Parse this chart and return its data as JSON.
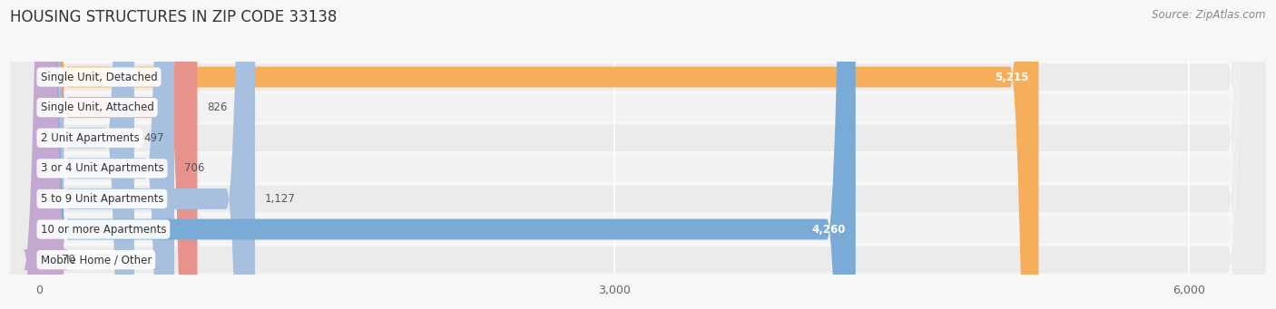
{
  "title": "HOUSING STRUCTURES IN ZIP CODE 33138",
  "source": "Source: ZipAtlas.com",
  "categories": [
    "Single Unit, Detached",
    "Single Unit, Attached",
    "2 Unit Apartments",
    "3 or 4 Unit Apartments",
    "5 to 9 Unit Apartments",
    "10 or more Apartments",
    "Mobile Home / Other"
  ],
  "values": [
    5215,
    826,
    497,
    706,
    1127,
    4260,
    70
  ],
  "bar_colors": [
    "#F7AE5A",
    "#E8928C",
    "#A8C0DF",
    "#A8C0DF",
    "#A8C0DF",
    "#7AABD6",
    "#C3A8D1"
  ],
  "value_labels": [
    "5,215",
    "826",
    "497",
    "706",
    "1,127",
    "4,260",
    "70"
  ],
  "value_inside": [
    true,
    false,
    false,
    false,
    false,
    true,
    false
  ],
  "xlim_min": -150,
  "xlim_max": 6400,
  "xticks": [
    0,
    3000,
    6000
  ],
  "xticklabels": [
    "0",
    "3,000",
    "6,000"
  ],
  "row_bg_colors": [
    "#EBEBEB",
    "#F2F2F2"
  ],
  "fig_bg": "#F7F7F7",
  "title_fontsize": 12,
  "source_fontsize": 8.5,
  "label_fontsize": 8.5,
  "value_fontsize": 8.5,
  "bar_height": 0.68
}
